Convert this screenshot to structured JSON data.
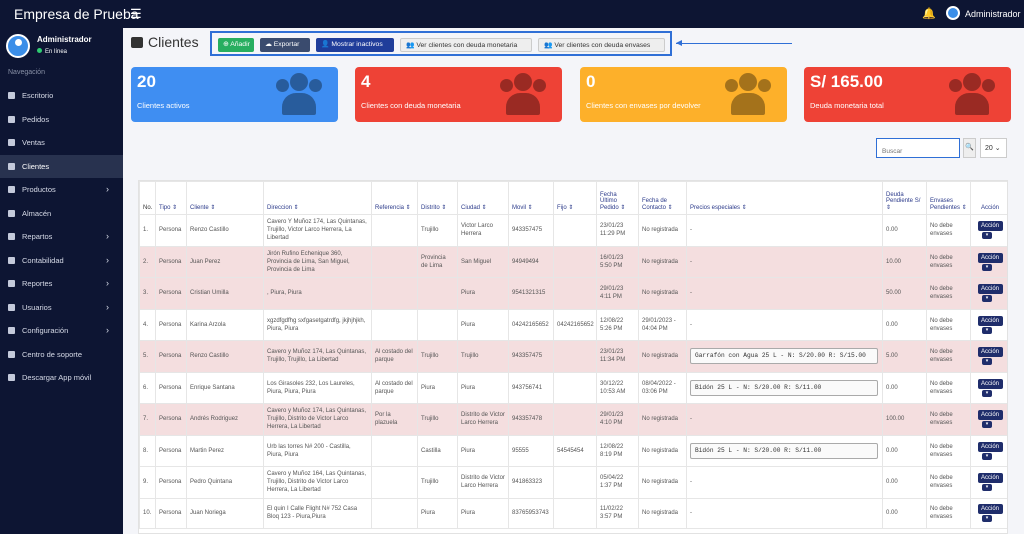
{
  "topbar": {
    "brand": "Empresa de Prueba",
    "user": "Administrador"
  },
  "sidebar": {
    "user_name": "Administrador",
    "status": "En línea",
    "nav_title": "Navegación",
    "items": [
      {
        "label": "Escritorio",
        "icon": "dashboard-icon"
      },
      {
        "label": "Pedidos",
        "icon": "send-icon"
      },
      {
        "label": "Ventas",
        "icon": "check-square-icon"
      },
      {
        "label": "Clientes",
        "icon": "users-icon"
      },
      {
        "label": "Productos",
        "icon": "box-icon"
      },
      {
        "label": "Almacén",
        "icon": "warehouse-icon"
      },
      {
        "label": "Repartos",
        "icon": "truck-icon"
      },
      {
        "label": "Contabilidad",
        "icon": "calculator-icon"
      },
      {
        "label": "Reportes",
        "icon": "chart-icon"
      },
      {
        "label": "Usuarios",
        "icon": "user-icon"
      },
      {
        "label": "Configuración",
        "icon": "cog-icon"
      },
      {
        "label": "Centro de soporte",
        "icon": "lifebuoy-icon"
      },
      {
        "label": "Descargar App móvil",
        "icon": "download-icon"
      }
    ]
  },
  "page": {
    "title": "Clientes"
  },
  "toolbar": {
    "add": "Añadir",
    "export": "Exportar",
    "show_inactive": "Mostrar inactivos",
    "debt_money": "Ver clientes con deuda monetaria",
    "debt_containers": "Ver clientes con deuda envases"
  },
  "cards": [
    {
      "value": "20",
      "label": "Clientes activos",
      "color": "#3f8ef2"
    },
    {
      "value": "4",
      "label": "Clientes con deuda monetaria",
      "color": "#ee4236"
    },
    {
      "value": "0",
      "label": "Clientes con envases por devolver",
      "color": "#fdb02a"
    },
    {
      "value": "S/ 165.00",
      "label": "Deuda monetaria total",
      "color": "#ee4236"
    }
  ],
  "search": {
    "placeholder": "Buscar",
    "per_page": "20"
  },
  "table": {
    "headers": [
      "No.",
      "Tipo ⇕",
      "Cliente ⇕",
      "Direccion ⇕",
      "Referencia ⇕",
      "Distrito ⇕",
      "Ciudad ⇕",
      "Movil ⇕",
      "Fijo ⇕",
      "Fecha Último Pedido ⇕",
      "Fecha de Contacto ⇕",
      "Precios especiales ⇕",
      "Deuda Pendiente S/ ⇕",
      "Envases Pendientes ⇕",
      "Acción"
    ],
    "action_label": "Acción",
    "rows": [
      {
        "c": [
          "1.",
          "Persona",
          "Renzo Castillo",
          "Cavero Y Muñoz 174, Las Quintanas, Trujillo, Victor Larco Herrera, La Libertad",
          "",
          "Trujillo",
          "Victor Larco Herrera",
          "943357475",
          "",
          "23/01/23 11:29 PM",
          "No registrada",
          "-",
          "0.00",
          "No debe envases"
        ],
        "pink": false
      },
      {
        "c": [
          "2.",
          "Persona",
          "Juan Perez",
          "Jirón Rufino Echenique 360, Provincia de Lima, San Miguel, Provincia de Lima",
          "",
          "Provincia de Lima",
          "San Miguel",
          "94949494",
          "",
          "16/01/23 5:50 PM",
          "No registrada",
          "-",
          "10.00",
          "No debe envases"
        ],
        "pink": true
      },
      {
        "c": [
          "3.",
          "Persona",
          "Cristian Umilla",
          ", Piura, Piura",
          "",
          "",
          "Piura",
          "9541321315",
          "",
          "29/01/23 4:11 PM",
          "No registrada",
          "-",
          "50.00",
          "No debe envases"
        ],
        "pink": true
      },
      {
        "c": [
          "4.",
          "Persona",
          "Karina Arzola",
          "xgzdfgdfhg sxfgasetgatrdfg, jkjhjhjkh, Piura, Piura",
          "",
          "",
          "Piura",
          "04242165652",
          "04242165652",
          "12/08/22 5:26 PM",
          "29/01/2023 - 04:04 PM",
          "-",
          "0.00",
          "No debe envases"
        ],
        "pink": false
      },
      {
        "c": [
          "5.",
          "Persona",
          "Renzo Castillo",
          "Cavero y Muñoz 174, Las Quintanas, Trujillo, Trujillo, La Libertad",
          "Al costado del parque",
          "Trujillo",
          "Trujillo",
          "943357475",
          "",
          "23/01/23 11:34 PM",
          "No registrada",
          "Garrafón con Agua 25 L -  N: S/20.00 R: S/15.00",
          "5.00",
          "No debe envases"
        ],
        "pink": true
      },
      {
        "c": [
          "6.",
          "Persona",
          "Enrique Santana",
          "Los Girasoles 232, Los Laureles, Piura, Piura, Piura",
          "Al costado del parque",
          "Piura",
          "Piura",
          "943756741",
          "",
          "30/12/22 10:53 AM",
          "08/04/2022 - 03:06 PM",
          "Bidón 25 L -  N: S/20.00 R: S/11.00",
          "0.00",
          "No debe envases"
        ],
        "pink": false
      },
      {
        "c": [
          "7.",
          "Persona",
          "Andrés Rodriguez",
          "Cavero y Muñoz 174, Las Quintanas, Trujillo, Distrito de Victor Larco Herrera, La Libertad",
          "Por la plazuela",
          "Trujillo",
          "Distrito de Victor Larco Herrera",
          "943357478",
          "",
          "29/01/23 4:10 PM",
          "No registrada",
          "-",
          "100.00",
          "No debe envases"
        ],
        "pink": true
      },
      {
        "c": [
          "8.",
          "Persona",
          "Martin Perez",
          "Urb las torres N# 200 - Castilla, Piura, Piura",
          "",
          "Castilla",
          "Piura",
          "95555",
          "54545454",
          "12/08/22 8:19 PM",
          "No registrada",
          "Bidón 25 L -  N: S/20.00 R: S/11.00",
          "0.00",
          "No debe envases"
        ],
        "pink": false
      },
      {
        "c": [
          "9.",
          "Persona",
          "Pedro Quintana",
          "Cavero y Muñoz 164, Las Quintanas, Trujillo, Distrito de Victor Larco Herrera, La Libertad",
          "",
          "Trujillo",
          "Distrito de Victor Larco Herrera",
          "941863323",
          "",
          "05/04/22 1:37 PM",
          "No registrada",
          "-",
          "0.00",
          "No debe envases"
        ],
        "pink": false
      },
      {
        "c": [
          "10.",
          "Persona",
          "Juan Noriega",
          "El quin I Calle Flight N# 752 Casa Bloq 123 - Piura,Piura",
          "",
          "Piura",
          "Piura",
          "83765953743",
          "",
          "11/02/22 3:57 PM",
          "No registrada",
          "-",
          "0.00",
          "No debe envases"
        ],
        "pink": false
      }
    ]
  }
}
